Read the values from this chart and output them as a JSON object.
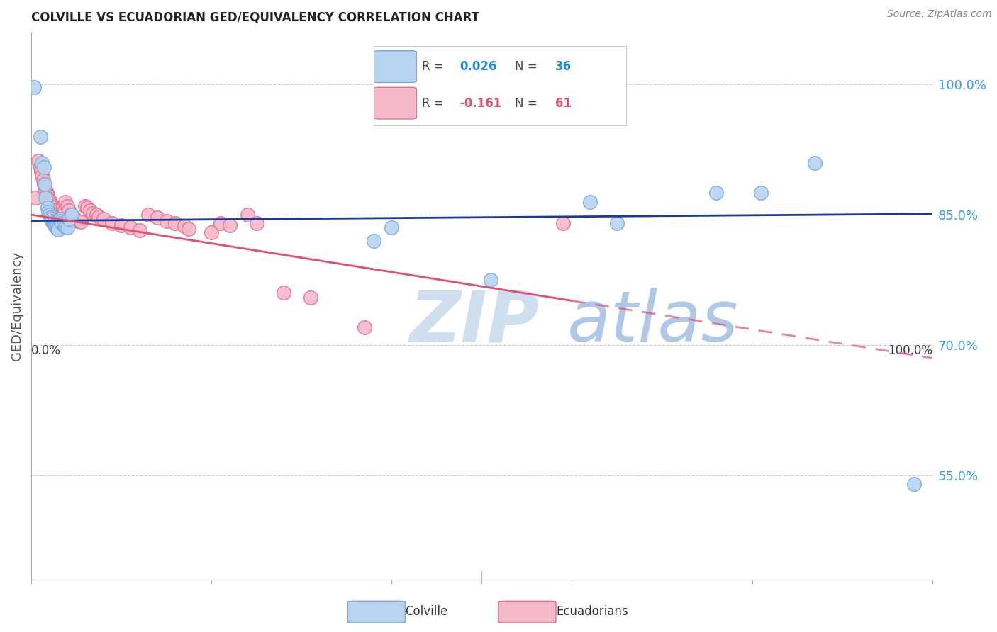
{
  "title": "COLVILLE VS ECUADORIAN GED/EQUIVALENCY CORRELATION CHART",
  "source": "Source: ZipAtlas.com",
  "ylabel": "GED/Equivalency",
  "ytick_labels": [
    "55.0%",
    "70.0%",
    "85.0%",
    "100.0%"
  ],
  "ytick_values": [
    0.55,
    0.7,
    0.85,
    1.0
  ],
  "xlim": [
    0.0,
    1.0
  ],
  "ylim": [
    0.43,
    1.06
  ],
  "colville_R": 0.026,
  "colville_N": 36,
  "ecuadorian_R": -0.161,
  "ecuadorian_N": 61,
  "colville_color": "#b8d4f0",
  "colville_edge": "#7aaad8",
  "ecuadorian_color": "#f5b8c8",
  "ecuadorian_edge": "#e07090",
  "colville_line_color": "#1a3a9a",
  "ecuadorian_line_color": "#e05070",
  "watermark_zip_color": "#d0dff0",
  "watermark_atlas_color": "#b0c8e8",
  "background_color": "#ffffff",
  "ecu_line_solid_end": 0.6,
  "colville_points": [
    [
      0.003,
      0.997
    ],
    [
      0.01,
      0.94
    ],
    [
      0.012,
      0.91
    ],
    [
      0.014,
      0.905
    ],
    [
      0.015,
      0.885
    ],
    [
      0.016,
      0.87
    ],
    [
      0.018,
      0.858
    ],
    [
      0.019,
      0.853
    ],
    [
      0.02,
      0.85
    ],
    [
      0.021,
      0.847
    ],
    [
      0.022,
      0.845
    ],
    [
      0.023,
      0.843
    ],
    [
      0.024,
      0.841
    ],
    [
      0.025,
      0.84
    ],
    [
      0.026,
      0.838
    ],
    [
      0.027,
      0.836
    ],
    [
      0.028,
      0.835
    ],
    [
      0.029,
      0.834
    ],
    [
      0.03,
      0.833
    ],
    [
      0.032,
      0.845
    ],
    [
      0.033,
      0.843
    ],
    [
      0.034,
      0.84
    ],
    [
      0.036,
      0.838
    ],
    [
      0.038,
      0.836
    ],
    [
      0.04,
      0.835
    ],
    [
      0.042,
      0.845
    ],
    [
      0.045,
      0.85
    ],
    [
      0.38,
      0.82
    ],
    [
      0.4,
      0.835
    ],
    [
      0.51,
      0.775
    ],
    [
      0.62,
      0.865
    ],
    [
      0.65,
      0.84
    ],
    [
      0.76,
      0.875
    ],
    [
      0.81,
      0.875
    ],
    [
      0.87,
      0.91
    ],
    [
      0.98,
      0.54
    ]
  ],
  "ecuadorian_points": [
    [
      0.005,
      0.87
    ],
    [
      0.008,
      0.912
    ],
    [
      0.01,
      0.905
    ],
    [
      0.011,
      0.9
    ],
    [
      0.012,
      0.895
    ],
    [
      0.013,
      0.89
    ],
    [
      0.014,
      0.885
    ],
    [
      0.015,
      0.882
    ],
    [
      0.016,
      0.878
    ],
    [
      0.017,
      0.875
    ],
    [
      0.018,
      0.872
    ],
    [
      0.019,
      0.869
    ],
    [
      0.02,
      0.866
    ],
    [
      0.021,
      0.865
    ],
    [
      0.022,
      0.862
    ],
    [
      0.023,
      0.86
    ],
    [
      0.024,
      0.858
    ],
    [
      0.025,
      0.856
    ],
    [
      0.026,
      0.855
    ],
    [
      0.027,
      0.853
    ],
    [
      0.028,
      0.851
    ],
    [
      0.029,
      0.85
    ],
    [
      0.03,
      0.848
    ],
    [
      0.032,
      0.846
    ],
    [
      0.033,
      0.845
    ],
    [
      0.035,
      0.858
    ],
    [
      0.037,
      0.855
    ],
    [
      0.038,
      0.865
    ],
    [
      0.04,
      0.86
    ],
    [
      0.042,
      0.855
    ],
    [
      0.044,
      0.85
    ],
    [
      0.046,
      0.848
    ],
    [
      0.048,
      0.845
    ],
    [
      0.052,
      0.843
    ],
    [
      0.055,
      0.842
    ],
    [
      0.06,
      0.86
    ],
    [
      0.062,
      0.858
    ],
    [
      0.065,
      0.855
    ],
    [
      0.068,
      0.852
    ],
    [
      0.072,
      0.85
    ],
    [
      0.075,
      0.848
    ],
    [
      0.08,
      0.845
    ],
    [
      0.09,
      0.84
    ],
    [
      0.1,
      0.838
    ],
    [
      0.11,
      0.835
    ],
    [
      0.12,
      0.832
    ],
    [
      0.13,
      0.85
    ],
    [
      0.14,
      0.847
    ],
    [
      0.15,
      0.843
    ],
    [
      0.16,
      0.84
    ],
    [
      0.17,
      0.837
    ],
    [
      0.175,
      0.834
    ],
    [
      0.2,
      0.83
    ],
    [
      0.21,
      0.84
    ],
    [
      0.22,
      0.838
    ],
    [
      0.24,
      0.85
    ],
    [
      0.25,
      0.84
    ],
    [
      0.28,
      0.76
    ],
    [
      0.31,
      0.755
    ],
    [
      0.37,
      0.72
    ],
    [
      0.59,
      0.84
    ]
  ]
}
